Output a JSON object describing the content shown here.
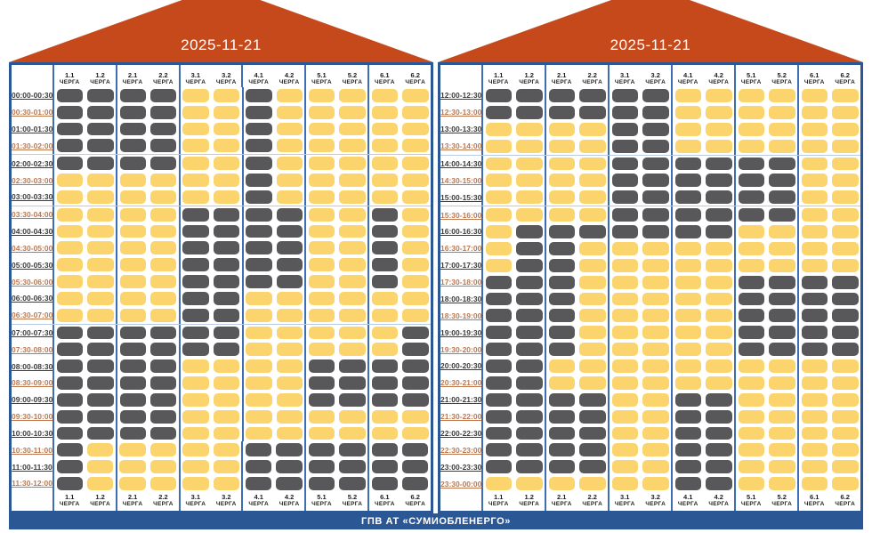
{
  "footer": {
    "label": "ГПВ АТ «СУМИОБЛЕНЕРГО»"
  },
  "colors": {
    "roof": "#c6491c",
    "blue": "#2c5795",
    "divider": "#3e6db3",
    "hline": "#b7cbe5",
    "cell_off": "#58585a",
    "cell_on": "#fbd46e",
    "time_even": "#3c3c3c",
    "time_odd": "#bd7950",
    "header_text": "#1f1f1f"
  },
  "chart_data": {
    "type": "heatmap",
    "title": "2025-11-21",
    "columns": [
      "1.1",
      "1.2",
      "2.1",
      "2.2",
      "3.1",
      "3.2",
      "4.1",
      "4.2",
      "5.1",
      "5.2",
      "6.1",
      "6.2"
    ],
    "column_subtitle": "ЧЕРГА",
    "legend": {
      "D": "power off (outage)",
      "Y": "power on"
    },
    "panels": [
      {
        "time_range": "00:00-12:00",
        "hlines": [
          4,
          7,
          14
        ],
        "rows": [
          {
            "time": "00:00-00:30",
            "states": "DDDDYYDYYYYY"
          },
          {
            "time": "00:30-01:00",
            "states": "DDDDYYDYYYYY"
          },
          {
            "time": "01:00-01:30",
            "states": "DDDDYYDYYYYY"
          },
          {
            "time": "01:30-02:00",
            "states": "DDDDYYDYYYYY"
          },
          {
            "time": "02:00-02:30",
            "states": "DDDDYYDYYYYY"
          },
          {
            "time": "02:30-03:00",
            "states": "YYYYYYDYYYYY"
          },
          {
            "time": "03:00-03:30",
            "states": "YYYYYYDYYYYY"
          },
          {
            "time": "03:30-04:00",
            "states": "YYYYDDDDYYDY"
          },
          {
            "time": "04:00-04:30",
            "states": "YYYYDDDDYYDY"
          },
          {
            "time": "04:30-05:00",
            "states": "YYYYDDDDYYDY"
          },
          {
            "time": "05:00-05:30",
            "states": "YYYYDDDDYYDY"
          },
          {
            "time": "05:30-06:00",
            "states": "YYYYDDDDYYDY"
          },
          {
            "time": "06:00-06:30",
            "states": "YYYYDDYYYYYY"
          },
          {
            "time": "06:30-07:00",
            "states": "YYYYDDYYYYYY"
          },
          {
            "time": "07:00-07:30",
            "states": "DDDDDDYYYYYD"
          },
          {
            "time": "07:30-08:00",
            "states": "DDDDDDYYYYYD"
          },
          {
            "time": "08:00-08:30",
            "states": "DDDDYYYYDDDD"
          },
          {
            "time": "08:30-09:00",
            "states": "DDDDYYYYDDDD"
          },
          {
            "time": "09:00-09:30",
            "states": "DDDDYYYYDDDD"
          },
          {
            "time": "09:30-10:00",
            "states": "DDDDYYYYYYYY"
          },
          {
            "time": "10:00-10:30",
            "states": "DDDDYYYYYYYY"
          },
          {
            "time": "10:30-11:00",
            "states": "DYYYYYDDDDDD"
          },
          {
            "time": "11:00-11:30",
            "states": "DYYYYYDDDDDD"
          },
          {
            "time": "11:30-12:00",
            "states": "DYYYYYDDDDDD"
          }
        ]
      },
      {
        "time_range": "12:00-24:00",
        "hlines": [
          4,
          7
        ],
        "rows": [
          {
            "time": "12:00-12:30",
            "states": "DDDDDDYYYYYY"
          },
          {
            "time": "12:30-13:00",
            "states": "DDDDDDYYYYYY"
          },
          {
            "time": "13:00-13:30",
            "states": "YYYYDDYYYYYY"
          },
          {
            "time": "13:30-14:00",
            "states": "YYYYDDYYYYYY"
          },
          {
            "time": "14:00-14:30",
            "states": "YYYYDDDDDDYY"
          },
          {
            "time": "14:30-15:00",
            "states": "YYYYDDDDDDYY"
          },
          {
            "time": "15:00-15:30",
            "states": "YYYYDDDDDDYY"
          },
          {
            "time": "15:30-16:00",
            "states": "YYYYDDDDDDYY"
          },
          {
            "time": "16:00-16:30",
            "states": "YDDDDDDDYYYY"
          },
          {
            "time": "16:30-17:00",
            "states": "YDDYYYYYYYYY"
          },
          {
            "time": "17:00-17:30",
            "states": "YDDYYYYYYYYY"
          },
          {
            "time": "17:30-18:00",
            "states": "DDDYYYYYDDDD"
          },
          {
            "time": "18:00-18:30",
            "states": "DDDYYYYYDDDD"
          },
          {
            "time": "18:30-19:00",
            "states": "DDDYYYYYDDDD"
          },
          {
            "time": "19:00-19:30",
            "states": "DDDYYYYYDDDD"
          },
          {
            "time": "19:30-20:00",
            "states": "DDDYYYYYDDDD"
          },
          {
            "time": "20:00-20:30",
            "states": "DDYYYYYYYYYY"
          },
          {
            "time": "20:30-21:00",
            "states": "DDYYYYYYYYYY"
          },
          {
            "time": "21:00-21:30",
            "states": "DDDDYYDDYYYY"
          },
          {
            "time": "21:30-22:00",
            "states": "DDDDYYDDYYYY"
          },
          {
            "time": "22:00-22:30",
            "states": "DDDDYYDDYYYY"
          },
          {
            "time": "22:30-23:00",
            "states": "DDDDYYDDYYYY"
          },
          {
            "time": "23:00-23:30",
            "states": "DDDDYYDDYYYY"
          },
          {
            "time": "23:30-00:00",
            "states": "YYYYYYDDYYYY"
          }
        ]
      }
    ]
  }
}
